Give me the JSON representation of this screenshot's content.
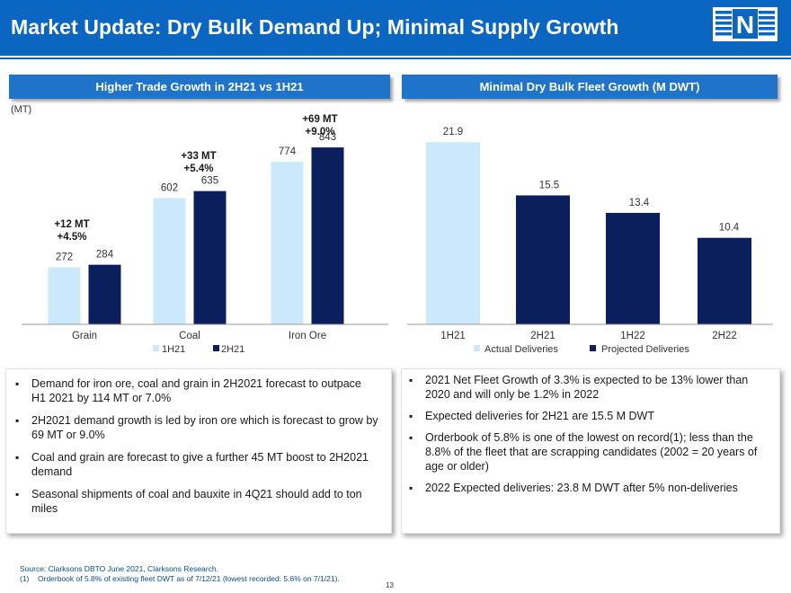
{
  "header": {
    "title": "Market Update: Dry Bulk Demand Up; Minimal Supply Growth",
    "logo_letter": "N"
  },
  "colors": {
    "brand_blue": "#0b66c2",
    "panel_blue": "#1f74c9",
    "light_bar": "#cce9fb",
    "dark_bar": "#0a1f5c"
  },
  "left_panel": {
    "title": "Higher Trade Growth in 2H21 vs 1H21",
    "unit_label": "(MT)"
  },
  "right_panel": {
    "title": "Minimal Dry Bulk Fleet Growth (M DWT)"
  },
  "chart_data": [
    {
      "type": "bar",
      "title": "Higher Trade Growth in 2H21 vs 1H21",
      "ylabel": "(MT)",
      "categories": [
        "Grain",
        "Coal",
        "Iron Ore"
      ],
      "series": [
        {
          "name": "1H21",
          "values": [
            272,
            602,
            774
          ],
          "color": "#cce9fb"
        },
        {
          "name": "2H21",
          "values": [
            284,
            635,
            843
          ],
          "color": "#0a1f5c"
        }
      ],
      "annotations": [
        {
          "category": "Grain",
          "lines": [
            "+12 MT",
            "+4.5%"
          ]
        },
        {
          "category": "Coal",
          "lines": [
            "+33 MT",
            "+5.4%"
          ]
        },
        {
          "category": "Iron Ore",
          "lines": [
            "+69 MT",
            "+9.0%"
          ]
        }
      ],
      "ylim": [
        0,
        960
      ],
      "legend": "bottom"
    },
    {
      "type": "bar",
      "title": "Minimal Dry Bulk Fleet Growth (M DWT)",
      "categories": [
        "1H21",
        "2H21",
        "1H22",
        "2H22"
      ],
      "values": [
        21.9,
        15.5,
        13.4,
        10.4
      ],
      "bar_series": [
        "Actual Deliveries",
        "Projected Deliveries",
        "Projected Deliveries",
        "Projected Deliveries"
      ],
      "legend_entries": [
        {
          "name": "Actual Deliveries",
          "color": "#cce9fb"
        },
        {
          "name": "Projected Deliveries",
          "color": "#0a1f5c"
        }
      ],
      "ylim": [
        0,
        25
      ],
      "legend": "bottom"
    }
  ],
  "left_bullets": [
    "Demand for iron ore, coal and grain in  2H2021 forecast to outpace H1 2021 by 114 MT or 7.0%",
    "2H2021 demand growth is led by iron ore  which is forecast to grow by 69 MT or 9.0%",
    "Coal and grain are forecast to give a further  45 MT boost to 2H2021 demand",
    "Seasonal shipments of coal and bauxite in  4Q21 should add to ton miles"
  ],
  "right_bullets": [
    "2021 Net Fleet Growth of 3.3% is expected to be 13% lower than 2020 and will only be 1.2% in 2022",
    "Expected deliveries for 2H21 are 15.5 M DWT",
    "Orderbook of 5.8% is one of the lowest on record(1); less than the 8.8% of the fleet that are scrapping candidates (2002 = 20 years of   age or older)",
    "2022 Expected deliveries: 23.8 M DWT after 5% non-deliveries"
  ],
  "footnotes": {
    "source": "Source: Clarksons DBTO June 2021, Clarksons Research.",
    "note_number": "(1)",
    "note_text": "Orderbook of 5.8% of existing fleet DWT as of 7/12/21 (lowest recorded: 5.6% on 7/1/21)."
  },
  "page_number": "13"
}
